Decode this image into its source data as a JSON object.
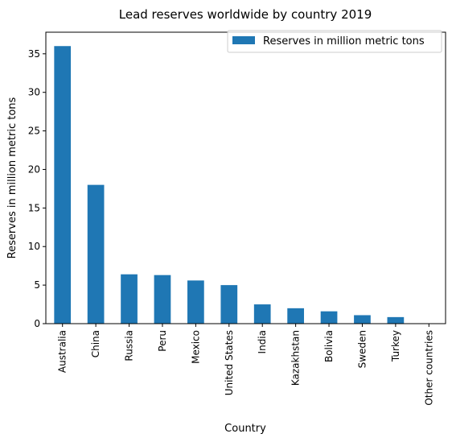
{
  "chart_data": {
    "type": "bar",
    "title": "Lead reserves worldwide by country 2019",
    "xlabel": "Country",
    "ylabel": "Reserves in million metric tons",
    "categories": [
      "Australia",
      "China",
      "Russia",
      "Peru",
      "Mexico",
      "United States",
      "India",
      "Kazakhstan",
      "Bolivia",
      "Sweden",
      "Turkey",
      "Other countries"
    ],
    "series": [
      {
        "name": "Reserves in million metric tons",
        "values": [
          36,
          18,
          6.4,
          6.3,
          5.6,
          5.0,
          2.5,
          2.0,
          1.6,
          1.1,
          0.85,
          0
        ],
        "color": "#1f77b4"
      }
    ],
    "ylim": [
      0,
      37.8
    ],
    "yticks": [
      0,
      5,
      10,
      15,
      20,
      25,
      30,
      35
    ],
    "grid": false,
    "legend": "top-right"
  }
}
